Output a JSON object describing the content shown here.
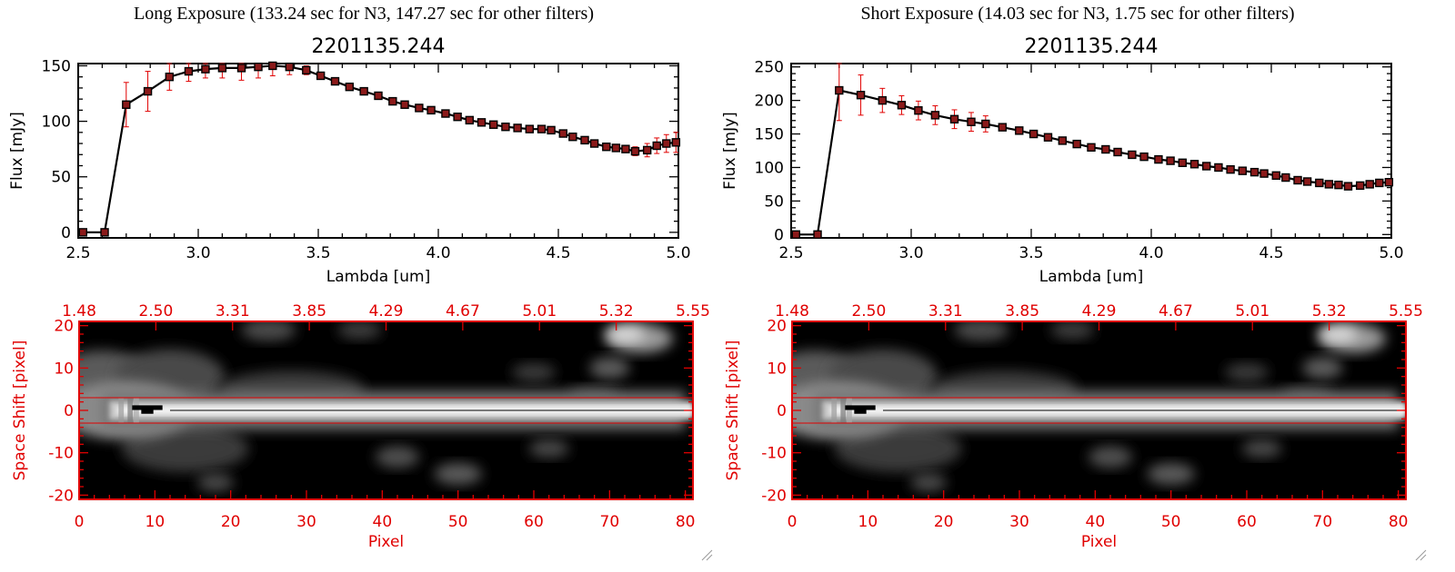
{
  "figure": {
    "left_title": "Long Exposure (133.24 sec for N3, 147.27 sec for other filters)",
    "right_title": "Short Exposure (14.03 sec for N3, 1.75 sec for other filters)"
  },
  "colors": {
    "spectrum_line": "#000000",
    "marker_fill": "#8b1a1a",
    "error_bar": "#e00000",
    "image_axes": "#e00000",
    "background": "#ffffff"
  },
  "chart_data": [
    {
      "type": "line",
      "id": "long-spectrum",
      "title": "2201135.244",
      "xlabel": "Lambda [um]",
      "ylabel": "Flux [mJy]",
      "xlim": [
        2.5,
        5.0
      ],
      "ylim": [
        -5,
        152
      ],
      "xticks": [
        "2.5",
        "3.0",
        "3.5",
        "4.0",
        "4.5",
        "5.0"
      ],
      "yticks": [
        "0",
        "50",
        "100",
        "150"
      ],
      "series": [
        {
          "x": [
            2.52,
            2.61,
            2.7,
            2.79,
            2.88,
            2.96,
            3.03,
            3.1,
            3.18,
            3.25,
            3.31,
            3.38,
            3.45,
            3.51,
            3.57,
            3.63,
            3.69,
            3.75,
            3.81,
            3.86,
            3.92,
            3.97,
            4.03,
            4.08,
            4.13,
            4.18,
            4.23,
            4.28,
            4.33,
            4.38,
            4.43,
            4.47,
            4.52,
            4.56,
            4.61,
            4.65,
            4.7,
            4.74,
            4.78,
            4.82,
            4.87,
            4.91,
            4.95,
            4.99
          ],
          "y": [
            0,
            0,
            115,
            127,
            140,
            145,
            147,
            148,
            148,
            149,
            150,
            149,
            146,
            141,
            136,
            131,
            127,
            123,
            118,
            115,
            112,
            110,
            107,
            104,
            101,
            99,
            97,
            95,
            94,
            93,
            93,
            92,
            89,
            86,
            83,
            80,
            77,
            76,
            75,
            73,
            74,
            78,
            80,
            81
          ],
          "yerr": [
            0,
            0,
            20,
            18,
            12,
            9,
            8,
            9,
            11,
            10,
            9,
            7,
            4,
            3,
            3,
            3,
            3,
            3,
            3,
            3,
            3,
            3,
            3,
            3,
            3,
            3,
            3,
            3,
            3,
            3,
            3,
            3,
            3,
            3,
            3,
            3,
            3,
            3,
            3,
            4,
            6,
            7,
            8,
            9
          ]
        }
      ]
    },
    {
      "type": "line",
      "id": "short-spectrum",
      "title": "2201135.244",
      "xlabel": "Lambda [um]",
      "ylabel": "Flux [mJy]",
      "xlim": [
        2.5,
        5.0
      ],
      "ylim": [
        -5,
        255
      ],
      "xticks": [
        "2.5",
        "3.0",
        "3.5",
        "4.0",
        "4.5",
        "5.0"
      ],
      "yticks": [
        "0",
        "50",
        "100",
        "150",
        "200",
        "250"
      ],
      "series": [
        {
          "x": [
            2.52,
            2.61,
            2.7,
            2.79,
            2.88,
            2.96,
            3.03,
            3.1,
            3.18,
            3.25,
            3.31,
            3.38,
            3.45,
            3.51,
            3.57,
            3.63,
            3.69,
            3.75,
            3.81,
            3.86,
            3.92,
            3.97,
            4.03,
            4.08,
            4.13,
            4.18,
            4.23,
            4.28,
            4.33,
            4.38,
            4.43,
            4.47,
            4.52,
            4.56,
            4.61,
            4.65,
            4.7,
            4.74,
            4.78,
            4.82,
            4.87,
            4.91,
            4.95,
            4.99
          ],
          "y": [
            0,
            0,
            215,
            208,
            200,
            193,
            185,
            178,
            172,
            168,
            165,
            160,
            155,
            150,
            145,
            140,
            135,
            130,
            127,
            123,
            119,
            116,
            112,
            110,
            107,
            105,
            102,
            100,
            97,
            95,
            93,
            91,
            88,
            85,
            81,
            79,
            77,
            75,
            74,
            72,
            73,
            75,
            77,
            78
          ],
          "yerr": [
            0,
            0,
            45,
            30,
            18,
            14,
            14,
            14,
            14,
            14,
            12,
            5,
            4,
            3,
            3,
            3,
            3,
            3,
            3,
            3,
            3,
            3,
            3,
            3,
            3,
            3,
            3,
            3,
            3,
            3,
            3,
            3,
            3,
            3,
            3,
            3,
            3,
            3,
            3,
            4,
            4,
            5,
            5,
            5
          ]
        }
      ]
    },
    {
      "type": "heatmap",
      "id": "long-image",
      "xlabel": "Pixel",
      "ylabel": "Space Shift [pixel]",
      "xlim": [
        0,
        81
      ],
      "ylim": [
        -21,
        21
      ],
      "xticks": [
        "0",
        "10",
        "20",
        "30",
        "40",
        "50",
        "60",
        "70",
        "80"
      ],
      "yticks": [
        "-20",
        "-10",
        "0",
        "10",
        "20"
      ],
      "top_ticks": [
        "1.48",
        "2.50",
        "3.31",
        "3.85",
        "4.29",
        "4.67",
        "5.01",
        "5.32",
        "5.55"
      ],
      "aperture_lines": [
        3,
        -3
      ],
      "center_line": 0
    },
    {
      "type": "heatmap",
      "id": "short-image",
      "xlabel": "Pixel",
      "ylabel": "Space Shift [pixel]",
      "xlim": [
        0,
        81
      ],
      "ylim": [
        -21,
        21
      ],
      "xticks": [
        "0",
        "10",
        "20",
        "30",
        "40",
        "50",
        "60",
        "70",
        "80"
      ],
      "yticks": [
        "-20",
        "-10",
        "0",
        "10",
        "20"
      ],
      "top_ticks": [
        "1.48",
        "2.50",
        "3.31",
        "3.85",
        "4.29",
        "4.67",
        "5.01",
        "5.32",
        "5.55"
      ],
      "aperture_lines": [
        3,
        -3
      ],
      "center_line": 0
    }
  ]
}
